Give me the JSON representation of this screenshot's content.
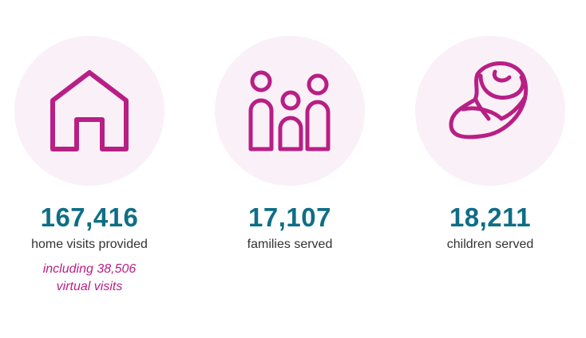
{
  "colors": {
    "accent": "#b81f85",
    "number": "#0f6e86",
    "circle": "#f9f1f7"
  },
  "stats": [
    {
      "icon": "house-icon",
      "number": "167,416",
      "label": "home visits provided",
      "note_line1": "including 38,506",
      "note_line2": "virtual visits"
    },
    {
      "icon": "family-icon",
      "number": "17,107",
      "label": "families served"
    },
    {
      "icon": "baby-icon",
      "number": "18,211",
      "label": "children served"
    }
  ]
}
